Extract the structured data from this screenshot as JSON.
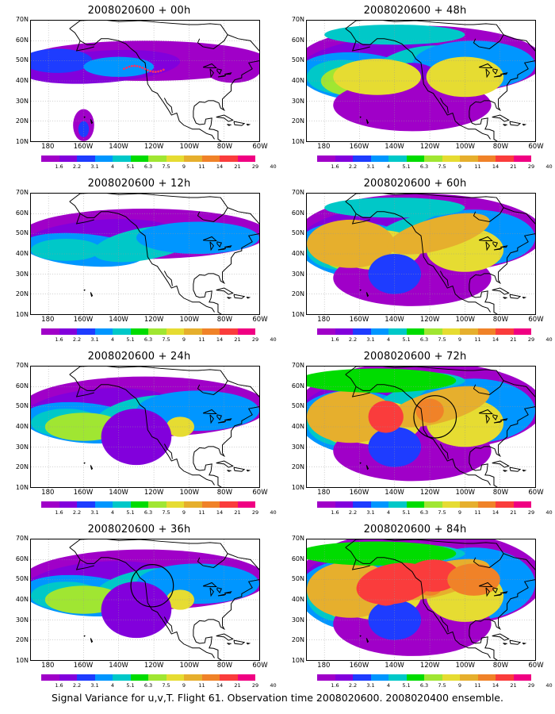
{
  "caption": "Signal Variance for u,v,T. Flight 61. Observation time 2008020600. 2008020400 ensemble.",
  "lat_labels": [
    "70N",
    "60N",
    "50N",
    "40N",
    "30N",
    "20N",
    "10N"
  ],
  "lon_labels": [
    "180",
    "160W",
    "140W",
    "120W",
    "100W",
    "80W",
    "60W"
  ],
  "colorbar": {
    "colors": [
      "#a000c8",
      "#8200dc",
      "#1e3cff",
      "#0096ff",
      "#00c8c8",
      "#00dc00",
      "#a0e632",
      "#e6dc32",
      "#e6af2d",
      "#f08228",
      "#fa3c3c",
      "#f00082"
    ],
    "labels": [
      "1.6",
      "2.2",
      "3.1",
      "4",
      "5.1",
      "6.3",
      "7.5",
      "9",
      "11",
      "14",
      "21",
      "29",
      "40"
    ]
  },
  "panels": [
    {
      "id": "00h",
      "title": "2008020600 + 00h",
      "level": 0,
      "marker": "dots"
    },
    {
      "id": "48h",
      "title": "2008020600 + 48h",
      "level": 3,
      "marker": "none"
    },
    {
      "id": "12h",
      "title": "2008020600 + 12h",
      "level": 1,
      "marker": "none"
    },
    {
      "id": "60h",
      "title": "2008020600 + 60h",
      "level": 4,
      "marker": "none"
    },
    {
      "id": "24h",
      "title": "2008020600 + 24h",
      "level": 2,
      "marker": "none"
    },
    {
      "id": "72h",
      "title": "2008020600 + 72h",
      "level": 5,
      "marker": "circle"
    },
    {
      "id": "36h",
      "title": "2008020600 + 36h",
      "level": 2,
      "marker": "circle"
    },
    {
      "id": "84h",
      "title": "2008020600 + 84h",
      "level": 6,
      "marker": "none"
    }
  ]
}
